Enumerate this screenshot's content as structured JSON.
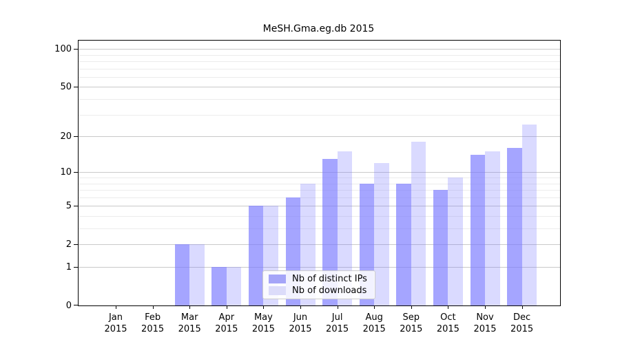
{
  "chart_data": {
    "type": "bar",
    "title": "MeSH.Gma.eg.db 2015",
    "categories": [
      "Jan 2015",
      "Feb 2015",
      "Mar 2015",
      "Apr 2015",
      "May 2015",
      "Jun 2015",
      "Jul 2015",
      "Aug 2015",
      "Sep 2015",
      "Oct 2015",
      "Nov 2015",
      "Dec 2015"
    ],
    "series": [
      {
        "key": "distinct-ips",
        "name": "Nb of distinct IPs",
        "values": [
          0,
          0,
          2,
          1,
          5,
          6,
          13,
          8,
          8,
          7,
          14,
          16
        ],
        "bar_color": "rgba(119,119,255,0.66)",
        "swatch_color": "#a5a5f8"
      },
      {
        "key": "downloads",
        "name": "Nb of downloads",
        "values": [
          0,
          0,
          2,
          1,
          5,
          8,
          15,
          12,
          18,
          9,
          15,
          25
        ],
        "bar_color": "rgba(119,119,255,0.27)",
        "swatch_color": "#dcdcfa"
      }
    ],
    "yscale": "log10(value+1)",
    "yticks": [
      0,
      1,
      2,
      5,
      10,
      20,
      50,
      100
    ],
    "minor_yticks": [
      3,
      4,
      6,
      7,
      8,
      9,
      30,
      40,
      60,
      70,
      80,
      90
    ],
    "ylim": [
      0,
      117
    ],
    "xlabel": "",
    "ylabel": "",
    "grid": "horizontal",
    "legend_position": "bottom-center-inside",
    "colors": {
      "background": "#ffffff",
      "axis": "#000000",
      "major_gridline": "#c9c9c9",
      "minor_gridline": "#ececec",
      "legend_border": "#cccccc"
    }
  }
}
